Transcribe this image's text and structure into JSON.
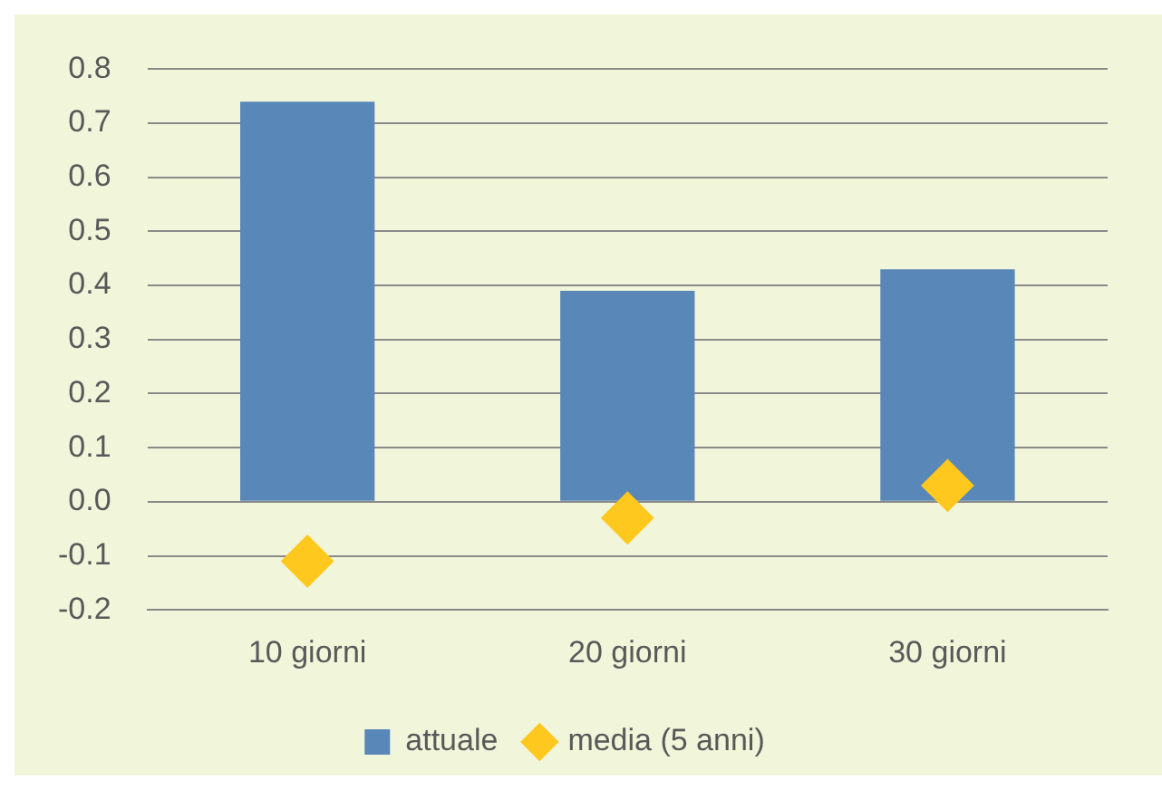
{
  "chart_data": {
    "type": "bar",
    "categories": [
      "10 giorni",
      "20 giorni",
      "30 giorni"
    ],
    "series": [
      {
        "name": "attuale",
        "color": "#5987b8",
        "values": [
          0.74,
          0.39,
          0.43
        ]
      },
      {
        "name": "media (5 anni)",
        "type": "scatter",
        "color": "#ffc81e",
        "x": [
          "10 giorni",
          "20 giorni",
          "30 giorni"
        ],
        "values": [
          -0.11,
          -0.03,
          0.03
        ]
      }
    ],
    "ylim": [
      -0.2,
      0.8
    ],
    "yticks": [
      {
        "value": -0.2,
        "label": "-0.2"
      },
      {
        "value": -0.1,
        "label": "-0.1"
      },
      {
        "value": 0,
        "label": "0.0"
      },
      {
        "value": 0.1,
        "label": "0.1"
      },
      {
        "value": 0.2,
        "label": "0.2"
      },
      {
        "value": 0.3,
        "label": "0.3"
      },
      {
        "value": 0.4,
        "label": "0.4"
      },
      {
        "value": 0.5,
        "label": "0.5"
      },
      {
        "value": 0.6,
        "label": "0.6"
      },
      {
        "value": 0.7,
        "label": "0.7"
      },
      {
        "value": 0.8,
        "label": "0.8"
      }
    ],
    "grid": "y",
    "legend": "bottom",
    "marker": "diamond"
  }
}
